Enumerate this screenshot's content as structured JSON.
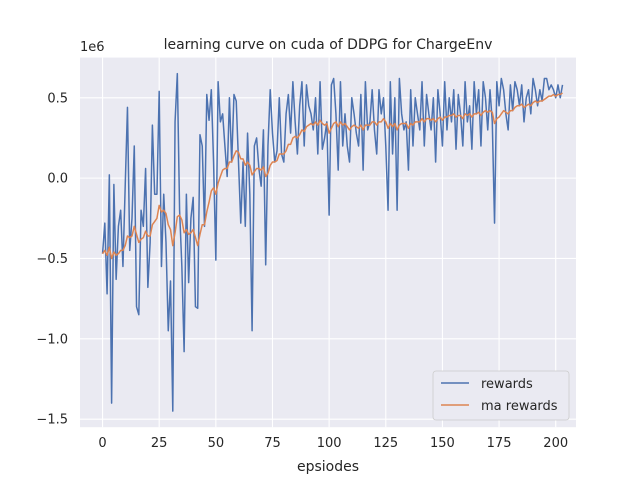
{
  "chart_data": {
    "type": "line",
    "title": "learning curve on cuda of DDPG for ChargeEnv",
    "xlabel": "epsiodes",
    "ylabel": "",
    "y_scale_label": "1e6",
    "xlim": [
      -9.95,
      208.95
    ],
    "ylim": [
      -1.55,
      0.75
    ],
    "x_ticks": [
      0,
      25,
      50,
      75,
      100,
      125,
      150,
      175,
      200
    ],
    "y_ticks": [
      -1.5,
      -1.0,
      -0.5,
      0.0,
      0.5
    ],
    "y_tick_labels": [
      "−1.5",
      "−1.0",
      "−0.5",
      "0.0",
      "0.5"
    ],
    "grid": true,
    "legend_position": "lower-right",
    "series": [
      {
        "name": "rewards",
        "color": "#4c72b0",
        "x_start": 0,
        "x_step": 1,
        "values": [
          -0.47,
          -0.28,
          -0.72,
          0.02,
          -1.4,
          -0.04,
          -0.63,
          -0.3,
          -0.2,
          -0.55,
          -0.05,
          0.44,
          -0.45,
          -0.25,
          0.2,
          -0.8,
          -0.85,
          -0.2,
          -0.3,
          0.06,
          -0.68,
          -0.4,
          0.33,
          -0.1,
          -0.1,
          0.54,
          -0.55,
          -0.1,
          -0.4,
          -0.95,
          -0.64,
          -1.45,
          0.35,
          0.65,
          -0.2,
          -0.55,
          -1.08,
          -0.1,
          -0.65,
          -0.25,
          -0.12,
          -0.8,
          -0.81,
          0.27,
          0.2,
          -0.3,
          0.52,
          0.36,
          0.55,
          0.1,
          -0.51,
          0.6,
          0.35,
          0.4,
          0.2,
          0.01,
          0.5,
          0.1,
          0.52,
          0.48,
          0.1,
          -0.28,
          0.1,
          -0.3,
          0.28,
          -0.1,
          -0.95,
          0.2,
          0.25,
          0.06,
          -0.05,
          0.3,
          -0.54,
          0.2,
          0.55,
          0.28,
          0.1,
          0.17,
          0.5,
          0.15,
          0.1,
          0.4,
          0.52,
          0.28,
          0.6,
          0.35,
          0.15,
          0.45,
          0.6,
          0.2,
          0.58,
          0.45,
          0.4,
          0.3,
          0.5,
          0.15,
          0.6,
          0.18,
          0.25,
          0.35,
          -0.23,
          0.58,
          0.62,
          0.4,
          0.05,
          0.6,
          0.2,
          0.4,
          0.2,
          0.1,
          0.5,
          0.4,
          0.28,
          0.2,
          0.52,
          0.05,
          0.6,
          0.3,
          0.35,
          0.55,
          0.3,
          0.15,
          0.55,
          0.4,
          0.5,
          0.2,
          -0.2,
          0.6,
          0.15,
          0.5,
          -0.2,
          0.62,
          0.4,
          0.3,
          0.35,
          0.05,
          0.55,
          0.2,
          0.5,
          0.4,
          0.3,
          0.6,
          0.2,
          0.52,
          0.4,
          0.3,
          0.5,
          0.1,
          0.55,
          0.4,
          0.2,
          0.6,
          0.3,
          0.5,
          0.35,
          0.55,
          0.18,
          0.52,
          0.4,
          0.2,
          0.6,
          0.35,
          0.45,
          0.18,
          0.6,
          0.4,
          0.55,
          0.2,
          0.6,
          0.5,
          0.3,
          0.55,
          0.35,
          -0.28,
          0.6,
          0.45,
          0.62,
          0.55,
          0.4,
          0.3,
          0.58,
          0.42,
          0.6,
          0.55,
          0.45,
          0.58,
          0.35,
          0.5,
          0.55,
          0.4,
          0.62,
          0.55,
          0.45,
          0.55,
          0.48,
          0.62,
          0.62,
          0.55,
          0.58,
          0.55,
          0.5,
          0.58,
          0.5,
          0.58
        ]
      },
      {
        "name": "ma rewards",
        "color": "#dd8452",
        "x_start": 0,
        "x_step": 1,
        "values": [
          -0.47,
          -0.45,
          -0.48,
          -0.43,
          -0.5,
          -0.46,
          -0.48,
          -0.47,
          -0.45,
          -0.45,
          -0.42,
          -0.36,
          -0.37,
          -0.36,
          -0.3,
          -0.35,
          -0.4,
          -0.38,
          -0.37,
          -0.33,
          -0.36,
          -0.36,
          -0.29,
          -0.27,
          -0.25,
          -0.17,
          -0.21,
          -0.2,
          -0.22,
          -0.29,
          -0.32,
          -0.42,
          -0.34,
          -0.24,
          -0.23,
          -0.26,
          -0.34,
          -0.32,
          -0.35,
          -0.34,
          -0.32,
          -0.37,
          -0.42,
          -0.35,
          -0.29,
          -0.29,
          -0.21,
          -0.15,
          -0.08,
          -0.06,
          -0.1,
          -0.03,
          0.01,
          0.05,
          0.06,
          0.06,
          0.1,
          0.1,
          0.14,
          0.17,
          0.16,
          0.12,
          0.12,
          0.08,
          0.1,
          0.08,
          0.02,
          0.04,
          0.06,
          0.06,
          0.05,
          0.07,
          0.01,
          0.03,
          0.08,
          0.1,
          0.1,
          0.11,
          0.15,
          0.15,
          0.15,
          0.17,
          0.21,
          0.21,
          0.25,
          0.26,
          0.25,
          0.27,
          0.3,
          0.29,
          0.32,
          0.33,
          0.34,
          0.33,
          0.35,
          0.33,
          0.36,
          0.34,
          0.33,
          0.34,
          0.28,
          0.31,
          0.34,
          0.35,
          0.32,
          0.35,
          0.33,
          0.34,
          0.32,
          0.3,
          0.32,
          0.33,
          0.32,
          0.31,
          0.33,
          0.3,
          0.33,
          0.33,
          0.33,
          0.35,
          0.35,
          0.33,
          0.35,
          0.35,
          0.37,
          0.35,
          0.31,
          0.34,
          0.32,
          0.34,
          0.3,
          0.33,
          0.34,
          0.34,
          0.34,
          0.31,
          0.34,
          0.33,
          0.35,
          0.35,
          0.35,
          0.37,
          0.35,
          0.37,
          0.37,
          0.36,
          0.37,
          0.35,
          0.37,
          0.38,
          0.36,
          0.38,
          0.38,
          0.39,
          0.39,
          0.4,
          0.38,
          0.39,
          0.39,
          0.37,
          0.4,
          0.39,
          0.4,
          0.38,
          0.4,
          0.4,
          0.41,
          0.39,
          0.41,
          0.42,
          0.41,
          0.42,
          0.41,
          0.34,
          0.37,
          0.38,
          0.4,
          0.42,
          0.41,
          0.4,
          0.42,
          0.42,
          0.44,
          0.45,
          0.45,
          0.46,
          0.44,
          0.45,
          0.46,
          0.45,
          0.47,
          0.48,
          0.47,
          0.48,
          0.48,
          0.49,
          0.5,
          0.51,
          0.51,
          0.52,
          0.51,
          0.52,
          0.52,
          0.53
        ]
      }
    ]
  }
}
